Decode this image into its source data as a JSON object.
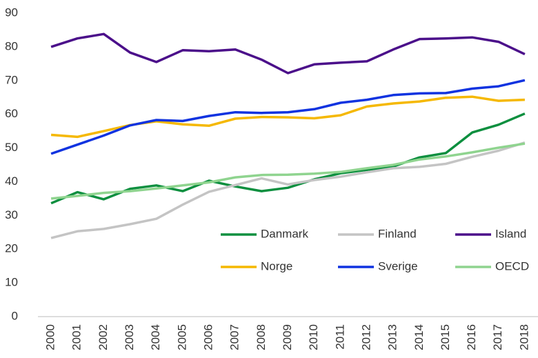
{
  "chart_data": {
    "type": "line",
    "x": [
      "2000",
      "2001",
      "2002",
      "2003",
      "2004",
      "2005",
      "2006",
      "2007",
      "2008",
      "2009",
      "2010",
      "2011",
      "2012",
      "2013",
      "2014",
      "2015",
      "2016",
      "2017",
      "2018"
    ],
    "series": [
      {
        "name": "Danmark",
        "color": "#0d8f3f",
        "values": [
          33.6,
          36.9,
          34.8,
          37.9,
          38.9,
          37.2,
          40.3,
          38.6,
          37.2,
          38.2,
          40.7,
          42.5,
          43.5,
          44.5,
          47.2,
          48.5,
          54.6,
          56.9,
          60.2
        ]
      },
      {
        "name": "Finland",
        "color": "#c4c4c4",
        "values": [
          23.3,
          25.3,
          26,
          27.4,
          29,
          33.2,
          37,
          39,
          41,
          39.2,
          40.5,
          41.5,
          42.8,
          44,
          44.4,
          45.3,
          47.4,
          49.2,
          51.6
        ]
      },
      {
        "name": "Island",
        "color": "#4b0f8a",
        "values": [
          80,
          82.5,
          83.8,
          78.3,
          75.5,
          79,
          78.7,
          79.2,
          76.2,
          72.2,
          74.8,
          75.3,
          75.7,
          79.2,
          82.3,
          82.5,
          82.8,
          81.5,
          77.8
        ]
      },
      {
        "name": "Norge",
        "color": "#f5b800",
        "values": [
          53.9,
          53.3,
          55,
          56.8,
          57.9,
          57,
          56.6,
          58.7,
          59.2,
          59.1,
          58.8,
          59.7,
          62.3,
          63.2,
          63.8,
          64.9,
          65.2,
          64,
          64.3
        ]
      },
      {
        "name": "Sverige",
        "color": "#1033e0",
        "values": [
          48.3,
          51,
          53.7,
          56.7,
          58.3,
          58,
          59.5,
          60.6,
          60.4,
          60.6,
          61.5,
          63.4,
          64.3,
          65.7,
          66.2,
          66.3,
          67.6,
          68.3,
          70.1
        ]
      },
      {
        "name": "OECD",
        "color": "#8fd48f",
        "values": [
          35,
          35.8,
          36.7,
          37.2,
          38,
          38.9,
          39.8,
          41.3,
          42,
          42.1,
          42.4,
          42.9,
          44,
          45,
          46.6,
          47.5,
          48.7,
          50.1,
          51.3
        ]
      }
    ],
    "ylim": [
      0,
      90
    ],
    "yticks": [
      0,
      10,
      20,
      30,
      40,
      50,
      60,
      70,
      80,
      90
    ],
    "grid": false,
    "legend": "lower right"
  }
}
